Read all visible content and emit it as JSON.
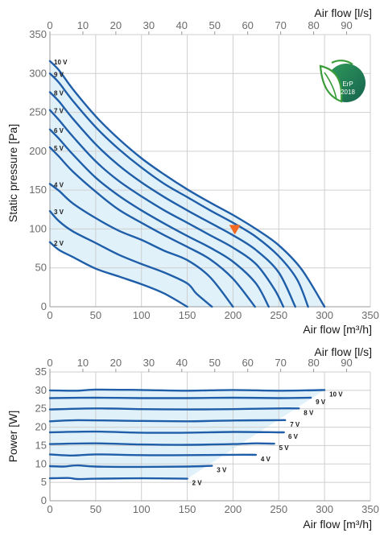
{
  "colors": {
    "curve": "#1f5ea8",
    "fill": "#dceef9",
    "marker": "#f26a21",
    "badge": "#1f7a55"
  },
  "badge": {
    "icon": "erp-leaf-icon",
    "line1": "ErP",
    "line2": "2018"
  },
  "chart_data": [
    {
      "type": "line",
      "title": "",
      "xlabel": "Air flow [m³/h]",
      "ylabel": "Static pressure [Pa]",
      "x2label": "Air flow [l/s]",
      "xlim": [
        0,
        350
      ],
      "ylim": [
        0,
        350
      ],
      "x2lim": [
        0,
        97.2
      ],
      "x_ticks": [
        0,
        50,
        100,
        150,
        200,
        250,
        300,
        350
      ],
      "y_ticks": [
        0,
        50,
        100,
        150,
        200,
        250,
        300,
        350
      ],
      "x2_ticks": [
        0,
        10,
        20,
        30,
        40,
        50,
        60,
        70,
        80,
        90
      ],
      "grid": true,
      "operating_point": {
        "x": 202,
        "y": 98
      },
      "series": [
        {
          "name": "2 V",
          "points": [
            [
              0,
              83
            ],
            [
              10,
              73
            ],
            [
              25,
              64
            ],
            [
              50,
              49
            ],
            [
              75,
              39
            ],
            [
              100,
              29
            ],
            [
              125,
              17
            ],
            [
              150,
              0
            ]
          ]
        },
        {
          "name": "3 V",
          "points": [
            [
              0,
              123
            ],
            [
              10,
              110
            ],
            [
              25,
              97
            ],
            [
              50,
              82
            ],
            [
              75,
              67
            ],
            [
              100,
              55
            ],
            [
              125,
              44
            ],
            [
              150,
              30
            ],
            [
              160,
              17
            ],
            [
              177,
              0
            ]
          ]
        },
        {
          "name": "4 V",
          "points": [
            [
              0,
              158
            ],
            [
              10,
              149
            ],
            [
              25,
              133
            ],
            [
              50,
              114
            ],
            [
              75,
              98
            ],
            [
              100,
              86
            ],
            [
              125,
              72
            ],
            [
              150,
              60
            ],
            [
              175,
              38
            ],
            [
              200,
              0
            ]
          ]
        },
        {
          "name": "5 V",
          "points": [
            [
              0,
              205
            ],
            [
              10,
              193
            ],
            [
              25,
              174
            ],
            [
              50,
              148
            ],
            [
              75,
              125
            ],
            [
              100,
              108
            ],
            [
              125,
              92
            ],
            [
              150,
              77
            ],
            [
              175,
              61
            ],
            [
              200,
              36
            ],
            [
              224,
              0
            ]
          ]
        },
        {
          "name": "6 V",
          "points": [
            [
              0,
              228
            ],
            [
              10,
              216
            ],
            [
              25,
              196
            ],
            [
              50,
              166
            ],
            [
              75,
              143
            ],
            [
              100,
              124
            ],
            [
              125,
              107
            ],
            [
              150,
              91
            ],
            [
              175,
              76
            ],
            [
              200,
              58
            ],
            [
              225,
              30
            ],
            [
              239,
              0
            ]
          ]
        },
        {
          "name": "7 V",
          "points": [
            [
              0,
              253
            ],
            [
              10,
              240
            ],
            [
              25,
              219
            ],
            [
              50,
              187
            ],
            [
              75,
              162
            ],
            [
              100,
              142
            ],
            [
              125,
              124
            ],
            [
              150,
              108
            ],
            [
              175,
              92
            ],
            [
              200,
              76
            ],
            [
              225,
              55
            ],
            [
              245,
              23
            ],
            [
              255,
              0
            ]
          ]
        },
        {
          "name": "8 V",
          "points": [
            [
              0,
              276
            ],
            [
              10,
              264
            ],
            [
              25,
              242
            ],
            [
              50,
              209
            ],
            [
              75,
              182
            ],
            [
              100,
              160
            ],
            [
              125,
              141
            ],
            [
              150,
              124
            ],
            [
              175,
              108
            ],
            [
              200,
              92
            ],
            [
              225,
              73
            ],
            [
              250,
              44
            ],
            [
              268,
              0
            ]
          ]
        },
        {
          "name": "9 V",
          "points": [
            [
              0,
              300
            ],
            [
              10,
              288
            ],
            [
              25,
              265
            ],
            [
              50,
              231
            ],
            [
              75,
              203
            ],
            [
              100,
              179
            ],
            [
              125,
              158
            ],
            [
              150,
              141
            ],
            [
              175,
              124
            ],
            [
              200,
              108
            ],
            [
              225,
              90
            ],
            [
              250,
              65
            ],
            [
              270,
              35
            ],
            [
              282,
              0
            ]
          ]
        },
        {
          "name": "10 V",
          "points": [
            [
              0,
              316
            ],
            [
              10,
              304
            ],
            [
              25,
              280
            ],
            [
              50,
              245
            ],
            [
              75,
              216
            ],
            [
              100,
              191
            ],
            [
              125,
              170
            ],
            [
              150,
              151
            ],
            [
              175,
              134
            ],
            [
              200,
              118
            ],
            [
              225,
              100
            ],
            [
              250,
              79
            ],
            [
              275,
              48
            ],
            [
              300,
              0
            ]
          ]
        }
      ],
      "labels": [
        "10 V",
        "9 V",
        "8 V",
        "7 V",
        "6 V",
        "5 V",
        "4 V",
        "3 V",
        "2 V"
      ]
    },
    {
      "type": "line",
      "title": "",
      "xlabel": "Air flow [m³/h]",
      "ylabel": "Power [W]",
      "x2label": "Air flow [l/s]",
      "xlim": [
        0,
        350
      ],
      "ylim": [
        0,
        35
      ],
      "x2lim": [
        0,
        97.2
      ],
      "x_ticks": [
        0,
        50,
        100,
        150,
        200,
        250,
        300,
        350
      ],
      "y_ticks": [
        0,
        5,
        10,
        15,
        20,
        25,
        30,
        35
      ],
      "x2_ticks": [
        0,
        10,
        20,
        30,
        40,
        50,
        60,
        70,
        80,
        90
      ],
      "grid": true,
      "series": [
        {
          "name": "2 V",
          "points": [
            [
              0,
              6.1
            ],
            [
              20,
              6.2
            ],
            [
              30,
              5.9
            ],
            [
              50,
              6.0
            ],
            [
              100,
              6.1
            ],
            [
              150,
              6.0
            ]
          ]
        },
        {
          "name": "3 V",
          "points": [
            [
              0,
              9.4
            ],
            [
              15,
              9.3
            ],
            [
              30,
              9.6
            ],
            [
              50,
              9.3
            ],
            [
              100,
              9.2
            ],
            [
              150,
              9.3
            ],
            [
              177,
              9.5
            ]
          ]
        },
        {
          "name": "4 V",
          "points": [
            [
              0,
              12.6
            ],
            [
              25,
              12.3
            ],
            [
              50,
              12.6
            ],
            [
              100,
              12.4
            ],
            [
              150,
              12.4
            ],
            [
              200,
              12.5
            ],
            [
              225,
              12.5
            ]
          ]
        },
        {
          "name": "5 V",
          "points": [
            [
              0,
              15.4
            ],
            [
              50,
              15.6
            ],
            [
              100,
              15.3
            ],
            [
              150,
              15.2
            ],
            [
              200,
              15.4
            ],
            [
              225,
              15.6
            ],
            [
              245,
              15.5
            ]
          ]
        },
        {
          "name": "6 V",
          "points": [
            [
              0,
              18.6
            ],
            [
              50,
              18.8
            ],
            [
              100,
              18.5
            ],
            [
              150,
              18.5
            ],
            [
              200,
              18.7
            ],
            [
              250,
              18.6
            ],
            [
              255,
              18.6
            ]
          ]
        },
        {
          "name": "7 V",
          "points": [
            [
              0,
              21.6
            ],
            [
              30,
              21.9
            ],
            [
              100,
              21.7
            ],
            [
              150,
              21.6
            ],
            [
              200,
              21.8
            ],
            [
              250,
              21.9
            ],
            [
              257,
              21.9
            ]
          ]
        },
        {
          "name": "8 V",
          "points": [
            [
              0,
              24.8
            ],
            [
              50,
              25.1
            ],
            [
              100,
              24.9
            ],
            [
              150,
              24.8
            ],
            [
              200,
              24.9
            ],
            [
              250,
              25.1
            ],
            [
              272,
              25.1
            ]
          ]
        },
        {
          "name": "9 V",
          "points": [
            [
              0,
              27.9
            ],
            [
              50,
              28.0
            ],
            [
              100,
              27.9
            ],
            [
              150,
              27.9
            ],
            [
              200,
              28.0
            ],
            [
              250,
              27.9
            ],
            [
              285,
              28.0
            ]
          ]
        },
        {
          "name": "10 V",
          "points": [
            [
              0,
              30.0
            ],
            [
              30,
              29.9
            ],
            [
              50,
              30.2
            ],
            [
              100,
              30.1
            ],
            [
              150,
              29.9
            ],
            [
              200,
              30.1
            ],
            [
              250,
              29.9
            ],
            [
              300,
              30.1
            ]
          ]
        }
      ]
    }
  ]
}
